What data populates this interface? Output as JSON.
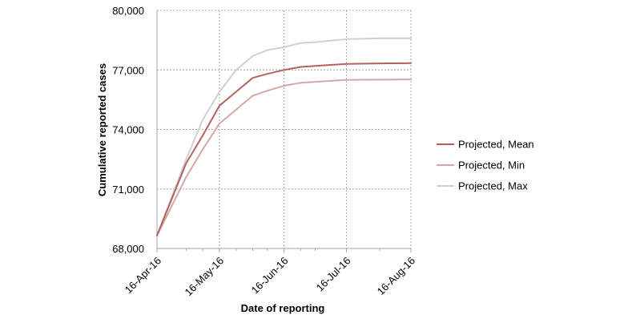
{
  "chart_data": {
    "type": "line",
    "title": "",
    "xlabel": "Date of reporting",
    "ylabel": "Cumulative reported cases",
    "x_tick_labels": [
      "16-Apr-16",
      "16-May-16",
      "16-Jun-16",
      "16-Jul-16",
      "16-Aug-16"
    ],
    "x_tick_dates": [
      "2016-04-16",
      "2016-05-16",
      "2016-06-16",
      "2016-07-16",
      "2016-08-16"
    ],
    "y_tick_labels": [
      "68,000",
      "71,000",
      "74,000",
      "77,000",
      "80,000"
    ],
    "ylim": [
      68000,
      80000
    ],
    "xlim": [
      "2016-04-16",
      "2016-08-16"
    ],
    "grid": true,
    "legend_position": "right",
    "x": [
      "2016-04-16",
      "2016-04-30",
      "2016-05-08",
      "2016-05-16",
      "2016-05-24",
      "2016-06-01",
      "2016-06-08",
      "2016-06-16",
      "2016-06-24",
      "2016-07-01",
      "2016-07-16",
      "2016-08-01",
      "2016-08-16"
    ],
    "series": [
      {
        "name": "Projected, Mean",
        "color": "#b5615d",
        "values": [
          68650,
          72300,
          73700,
          75200,
          75900,
          76600,
          76800,
          77000,
          77150,
          77200,
          77300,
          77330,
          77340
        ]
      },
      {
        "name": "Projected, Min",
        "color": "#d6a8a5",
        "values": [
          68650,
          71600,
          73000,
          74300,
          75000,
          75700,
          75950,
          76200,
          76350,
          76400,
          76500,
          76510,
          76520
        ]
      },
      {
        "name": "Projected, Max",
        "color": "#d0d0d0",
        "values": [
          68650,
          72500,
          74500,
          75900,
          77000,
          77700,
          78000,
          78150,
          78350,
          78400,
          78550,
          78600,
          78600
        ]
      }
    ]
  }
}
